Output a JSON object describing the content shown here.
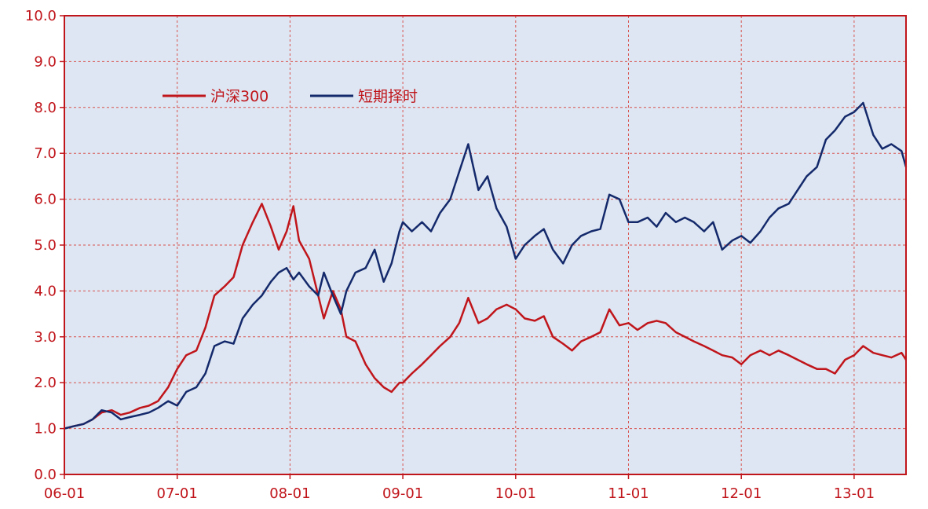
{
  "chart_data": {
    "type": "line",
    "title": "",
    "xlabel": "",
    "ylabel": "",
    "ylim": [
      0,
      10
    ],
    "x_ticks": [
      "06-01",
      "07-01",
      "08-01",
      "09-01",
      "10-01",
      "11-01",
      "12-01",
      "13-01"
    ],
    "y_ticks": [
      "0.0",
      "1.0",
      "2.0",
      "3.0",
      "4.0",
      "5.0",
      "6.0",
      "7.0",
      "8.0",
      "9.0",
      "10.0"
    ],
    "grid": true,
    "legend_position": "top-left",
    "x_range": [
      2006.0,
      2013.46
    ],
    "series": [
      {
        "name": "沪深300",
        "color": "#c0151b",
        "points": [
          [
            2006.0,
            1.0
          ],
          [
            2006.08,
            1.05
          ],
          [
            2006.17,
            1.1
          ],
          [
            2006.25,
            1.2
          ],
          [
            2006.33,
            1.35
          ],
          [
            2006.42,
            1.4
          ],
          [
            2006.5,
            1.3
          ],
          [
            2006.58,
            1.35
          ],
          [
            2006.67,
            1.45
          ],
          [
            2006.75,
            1.5
          ],
          [
            2006.83,
            1.6
          ],
          [
            2006.92,
            1.9
          ],
          [
            2007.0,
            2.3
          ],
          [
            2007.08,
            2.6
          ],
          [
            2007.17,
            2.7
          ],
          [
            2007.25,
            3.2
          ],
          [
            2007.33,
            3.9
          ],
          [
            2007.42,
            4.1
          ],
          [
            2007.5,
            4.3
          ],
          [
            2007.58,
            5.0
          ],
          [
            2007.67,
            5.5
          ],
          [
            2007.75,
            5.9
          ],
          [
            2007.83,
            5.4
          ],
          [
            2007.9,
            4.9
          ],
          [
            2007.97,
            5.3
          ],
          [
            2008.03,
            5.85
          ],
          [
            2008.08,
            5.1
          ],
          [
            2008.17,
            4.7
          ],
          [
            2008.25,
            3.9
          ],
          [
            2008.3,
            3.4
          ],
          [
            2008.38,
            4.0
          ],
          [
            2008.45,
            3.6
          ],
          [
            2008.5,
            3.0
          ],
          [
            2008.58,
            2.9
          ],
          [
            2008.67,
            2.4
          ],
          [
            2008.75,
            2.1
          ],
          [
            2008.83,
            1.9
          ],
          [
            2008.9,
            1.8
          ],
          [
            2008.97,
            2.0
          ],
          [
            2009.0,
            2.0
          ],
          [
            2009.08,
            2.2
          ],
          [
            2009.17,
            2.4
          ],
          [
            2009.25,
            2.6
          ],
          [
            2009.33,
            2.8
          ],
          [
            2009.42,
            3.0
          ],
          [
            2009.5,
            3.3
          ],
          [
            2009.58,
            3.85
          ],
          [
            2009.67,
            3.3
          ],
          [
            2009.75,
            3.4
          ],
          [
            2009.83,
            3.6
          ],
          [
            2009.92,
            3.7
          ],
          [
            2010.0,
            3.6
          ],
          [
            2010.08,
            3.4
          ],
          [
            2010.17,
            3.35
          ],
          [
            2010.25,
            3.45
          ],
          [
            2010.33,
            3.0
          ],
          [
            2010.42,
            2.85
          ],
          [
            2010.5,
            2.7
          ],
          [
            2010.58,
            2.9
          ],
          [
            2010.67,
            3.0
          ],
          [
            2010.75,
            3.1
          ],
          [
            2010.83,
            3.6
          ],
          [
            2010.92,
            3.25
          ],
          [
            2011.0,
            3.3
          ],
          [
            2011.08,
            3.15
          ],
          [
            2011.17,
            3.3
          ],
          [
            2011.25,
            3.35
          ],
          [
            2011.33,
            3.3
          ],
          [
            2011.42,
            3.1
          ],
          [
            2011.5,
            3.0
          ],
          [
            2011.58,
            2.9
          ],
          [
            2011.67,
            2.8
          ],
          [
            2011.75,
            2.7
          ],
          [
            2011.83,
            2.6
          ],
          [
            2011.92,
            2.55
          ],
          [
            2012.0,
            2.4
          ],
          [
            2012.08,
            2.6
          ],
          [
            2012.17,
            2.7
          ],
          [
            2012.25,
            2.6
          ],
          [
            2012.33,
            2.7
          ],
          [
            2012.42,
            2.6
          ],
          [
            2012.5,
            2.5
          ],
          [
            2012.58,
            2.4
          ],
          [
            2012.67,
            2.3
          ],
          [
            2012.75,
            2.3
          ],
          [
            2012.83,
            2.2
          ],
          [
            2012.92,
            2.5
          ],
          [
            2013.0,
            2.6
          ],
          [
            2013.08,
            2.8
          ],
          [
            2013.17,
            2.65
          ],
          [
            2013.25,
            2.6
          ],
          [
            2013.33,
            2.55
          ],
          [
            2013.42,
            2.65
          ],
          [
            2013.46,
            2.5
          ]
        ]
      },
      {
        "name": "短期择时",
        "color": "#14296b",
        "points": [
          [
            2006.0,
            1.0
          ],
          [
            2006.08,
            1.05
          ],
          [
            2006.17,
            1.1
          ],
          [
            2006.25,
            1.2
          ],
          [
            2006.33,
            1.4
          ],
          [
            2006.42,
            1.35
          ],
          [
            2006.5,
            1.2
          ],
          [
            2006.58,
            1.25
          ],
          [
            2006.67,
            1.3
          ],
          [
            2006.75,
            1.35
          ],
          [
            2006.83,
            1.45
          ],
          [
            2006.92,
            1.6
          ],
          [
            2007.0,
            1.5
          ],
          [
            2007.08,
            1.8
          ],
          [
            2007.17,
            1.9
          ],
          [
            2007.25,
            2.2
          ],
          [
            2007.33,
            2.8
          ],
          [
            2007.42,
            2.9
          ],
          [
            2007.5,
            2.85
          ],
          [
            2007.58,
            3.4
          ],
          [
            2007.67,
            3.7
          ],
          [
            2007.75,
            3.9
          ],
          [
            2007.83,
            4.2
          ],
          [
            2007.9,
            4.4
          ],
          [
            2007.97,
            4.5
          ],
          [
            2008.03,
            4.25
          ],
          [
            2008.08,
            4.4
          ],
          [
            2008.17,
            4.1
          ],
          [
            2008.25,
            3.9
          ],
          [
            2008.3,
            4.4
          ],
          [
            2008.38,
            3.9
          ],
          [
            2008.45,
            3.5
          ],
          [
            2008.5,
            4.0
          ],
          [
            2008.58,
            4.4
          ],
          [
            2008.67,
            4.5
          ],
          [
            2008.75,
            4.9
          ],
          [
            2008.83,
            4.2
          ],
          [
            2008.9,
            4.6
          ],
          [
            2008.97,
            5.3
          ],
          [
            2009.0,
            5.5
          ],
          [
            2009.08,
            5.3
          ],
          [
            2009.17,
            5.5
          ],
          [
            2009.25,
            5.3
          ],
          [
            2009.33,
            5.7
          ],
          [
            2009.42,
            6.0
          ],
          [
            2009.5,
            6.6
          ],
          [
            2009.58,
            7.2
          ],
          [
            2009.67,
            6.2
          ],
          [
            2009.75,
            6.5
          ],
          [
            2009.83,
            5.8
          ],
          [
            2009.92,
            5.4
          ],
          [
            2010.0,
            4.7
          ],
          [
            2010.08,
            5.0
          ],
          [
            2010.17,
            5.2
          ],
          [
            2010.25,
            5.35
          ],
          [
            2010.33,
            4.9
          ],
          [
            2010.42,
            4.6
          ],
          [
            2010.5,
            5.0
          ],
          [
            2010.58,
            5.2
          ],
          [
            2010.67,
            5.3
          ],
          [
            2010.75,
            5.35
          ],
          [
            2010.83,
            6.1
          ],
          [
            2010.92,
            6.0
          ],
          [
            2011.0,
            5.5
          ],
          [
            2011.08,
            5.5
          ],
          [
            2011.17,
            5.6
          ],
          [
            2011.25,
            5.4
          ],
          [
            2011.33,
            5.7
          ],
          [
            2011.42,
            5.5
          ],
          [
            2011.5,
            5.6
          ],
          [
            2011.58,
            5.5
          ],
          [
            2011.67,
            5.3
          ],
          [
            2011.75,
            5.5
          ],
          [
            2011.83,
            4.9
          ],
          [
            2011.92,
            5.1
          ],
          [
            2012.0,
            5.2
          ],
          [
            2012.08,
            5.05
          ],
          [
            2012.17,
            5.3
          ],
          [
            2012.25,
            5.6
          ],
          [
            2012.33,
            5.8
          ],
          [
            2012.42,
            5.9
          ],
          [
            2012.5,
            6.2
          ],
          [
            2012.58,
            6.5
          ],
          [
            2012.67,
            6.7
          ],
          [
            2012.75,
            7.3
          ],
          [
            2012.83,
            7.5
          ],
          [
            2012.92,
            7.8
          ],
          [
            2013.0,
            7.9
          ],
          [
            2013.08,
            8.1
          ],
          [
            2013.17,
            7.4
          ],
          [
            2013.25,
            7.1
          ],
          [
            2013.33,
            7.2
          ],
          [
            2013.42,
            7.05
          ],
          [
            2013.46,
            6.7
          ]
        ]
      }
    ]
  },
  "colors": {
    "axis": "#c0151b",
    "plot_background": "#dde6f2",
    "grid": "#d9534f"
  }
}
